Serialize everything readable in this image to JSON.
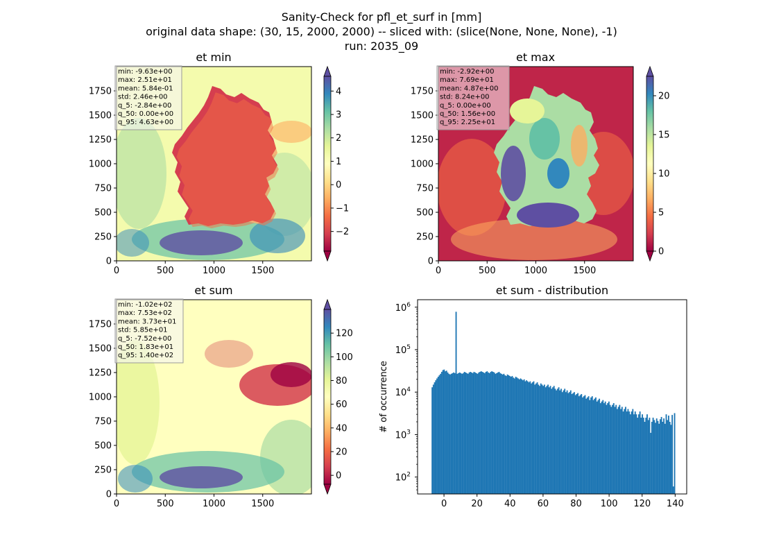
{
  "figure": {
    "title_line1": "Sanity-Check for pfl_et_surf in [mm]",
    "title_line2": "original data shape: (30, 15, 2000, 2000) -- sliced with: (slice(None, None, None), -1)",
    "title_line3": "run: 2035_09"
  },
  "chart_data": [
    {
      "type": "heatmap",
      "title": "et min",
      "colormap": "Spectral",
      "x_ticks": [
        "0",
        "500",
        "1000",
        "1500"
      ],
      "y_ticks": [
        "0",
        "250",
        "500",
        "750",
        "1000",
        "1250",
        "1500",
        "1750"
      ],
      "xlim": [
        0,
        2000
      ],
      "ylim": [
        0,
        2000
      ],
      "colorbar": {
        "range": [
          -2.84,
          4.63
        ],
        "ticks": [
          -2,
          -1,
          0,
          1,
          2,
          3,
          4
        ],
        "tick_labels": [
          "−2",
          "−1",
          "0",
          "1",
          "2",
          "3",
          "4"
        ],
        "extend": "both"
      },
      "stats": [
        "min: -9.63e+00",
        "max: 2.51e+01",
        "mean: 5.84e-01",
        "std: 2.46e+00",
        "q_5: -2.84e+00",
        "q_50: 0.00e+00",
        "q_95: 4.63e+00"
      ]
    },
    {
      "type": "heatmap",
      "title": "et max",
      "colormap": "Spectral",
      "x_ticks": [
        "0",
        "500",
        "1000",
        "1500"
      ],
      "y_ticks": [
        "0",
        "250",
        "500",
        "750",
        "1000",
        "1250",
        "1500",
        "1750"
      ],
      "xlim": [
        0,
        2000
      ],
      "ylim": [
        0,
        2000
      ],
      "colorbar": {
        "range": [
          0,
          22.5
        ],
        "ticks": [
          0,
          5,
          10,
          15,
          20
        ],
        "tick_labels": [
          "0",
          "5",
          "10",
          "15",
          "20"
        ],
        "extend": "both"
      },
      "stats": [
        "min: -2.92e+00",
        "max: 7.69e+01",
        "mean: 4.87e+00",
        "std: 8.24e+00",
        "q_5: 0.00e+00",
        "q_50: 1.56e+00",
        "q_95: 2.25e+01"
      ]
    },
    {
      "type": "heatmap",
      "title": "et sum",
      "colormap": "Spectral",
      "x_ticks": [
        "0",
        "500",
        "1000",
        "1500"
      ],
      "y_ticks": [
        "0",
        "250",
        "500",
        "750",
        "1000",
        "1250",
        "1500",
        "1750"
      ],
      "xlim": [
        0,
        2000
      ],
      "ylim": [
        0,
        2000
      ],
      "colorbar": {
        "range": [
          -7.52,
          140
        ],
        "ticks": [
          0,
          20,
          40,
          60,
          80,
          100,
          120
        ],
        "tick_labels": [
          "0",
          "20",
          "40",
          "60",
          "80",
          "100",
          "120"
        ],
        "extend": "both"
      },
      "stats": [
        "min: -1.02e+02",
        "max: 7.53e+02",
        "mean: 3.73e+01",
        "std: 5.85e+01",
        "q_5: -7.52e+00",
        "q_50: 1.83e+01",
        "q_95: 1.40e+02"
      ]
    },
    {
      "type": "bar",
      "subtype": "histogram",
      "title": "et sum - distribution",
      "ylabel": "# of occurrence",
      "yscale": "log",
      "xlim": [
        -16,
        147
      ],
      "ylim": [
        40,
        1500000
      ],
      "x_ticks": [
        0,
        20,
        40,
        60,
        80,
        100,
        120,
        140
      ],
      "y_ticks": [
        100,
        1000,
        10000,
        100000,
        1000000
      ],
      "y_tick_labels": [
        [
          "10",
          "2"
        ],
        [
          "10",
          "3"
        ],
        [
          "10",
          "4"
        ],
        [
          "10",
          "5"
        ],
        [
          "10",
          "6"
        ]
      ],
      "bin_range": [
        -7.52,
        140
      ],
      "bars_color": "#1f77b4",
      "values": [
        13000,
        15000,
        17000,
        19000,
        21000,
        23000,
        25000,
        27000,
        30000,
        33000,
        34000,
        31000,
        32000,
        29000,
        27000,
        26000,
        27000,
        28000,
        29000,
        28000,
        780000,
        27000,
        28000,
        29000,
        28000,
        27000,
        28000,
        30000,
        29000,
        28000,
        27000,
        29000,
        30000,
        29000,
        28000,
        30000,
        29000,
        28000,
        27000,
        29000,
        30000,
        31000,
        30000,
        29000,
        28000,
        30000,
        31000,
        29000,
        28000,
        30000,
        31000,
        30000,
        29000,
        27000,
        28000,
        29000,
        30000,
        28000,
        27000,
        26000,
        27000,
        25000,
        24000,
        26000,
        25000,
        24000,
        23000,
        24000,
        22000,
        21000,
        23000,
        22000,
        21000,
        20000,
        21000,
        20000,
        19000,
        20000,
        18000,
        19000,
        18000,
        17000,
        18000,
        16000,
        17000,
        18000,
        15000,
        16000,
        17000,
        15000,
        14000,
        16000,
        15000,
        14000,
        15000,
        13000,
        14000,
        15000,
        13000,
        14000,
        12000,
        13000,
        14000,
        12000,
        11000,
        12000,
        13000,
        11000,
        12000,
        10000,
        11000,
        12000,
        10000,
        11000,
        9500,
        10000,
        11000,
        9000,
        9500,
        10000,
        8500,
        9000,
        9500,
        8000,
        8500,
        9000,
        7500,
        8000,
        8500,
        7000,
        7500,
        8000,
        6500,
        7500,
        8000,
        6500,
        7000,
        7500,
        6000,
        6500,
        7000,
        5500,
        6000,
        6500,
        5500,
        6000,
        5000,
        5500,
        6000,
        5000,
        4500,
        5000,
        5500,
        4500,
        5000,
        4000,
        4500,
        5000,
        4000,
        4500,
        3500,
        4000,
        4500,
        3500,
        4000,
        3500,
        3000,
        3500,
        4000,
        3000,
        3500,
        3000,
        2500,
        3000,
        3500,
        2500,
        3000,
        2500,
        2000,
        2500,
        3000,
        2200,
        2500,
        1100,
        2000,
        2500,
        2200,
        1900,
        2400,
        2100,
        1800,
        2300,
        2600,
        2000,
        2400,
        1800,
        3000,
        2200,
        2800,
        2000,
        1700,
        2900,
        60,
        3200
      ]
    }
  ]
}
